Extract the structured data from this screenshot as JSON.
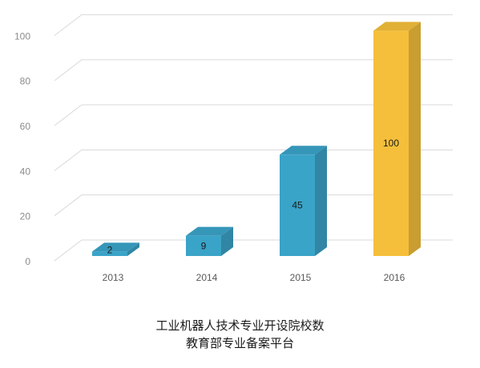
{
  "chart_data": {
    "type": "bar",
    "categories": [
      "2013",
      "2014",
      "2015",
      "2016"
    ],
    "values": [
      2,
      9,
      45,
      100
    ],
    "data_labels": [
      "2",
      "9",
      "45",
      "100"
    ],
    "yticks": [
      "0",
      "20",
      "40",
      "60",
      "80",
      "100"
    ],
    "ylim": [
      0,
      110
    ],
    "grid": true,
    "legend": "none",
    "colors": [
      "#3aa3c8",
      "#3aa3c8",
      "#3aa3c8",
      "#f5bf3b"
    ],
    "title": "工业机器人技术专业开设院校数",
    "subtitle": "教育部专业备案平台"
  }
}
